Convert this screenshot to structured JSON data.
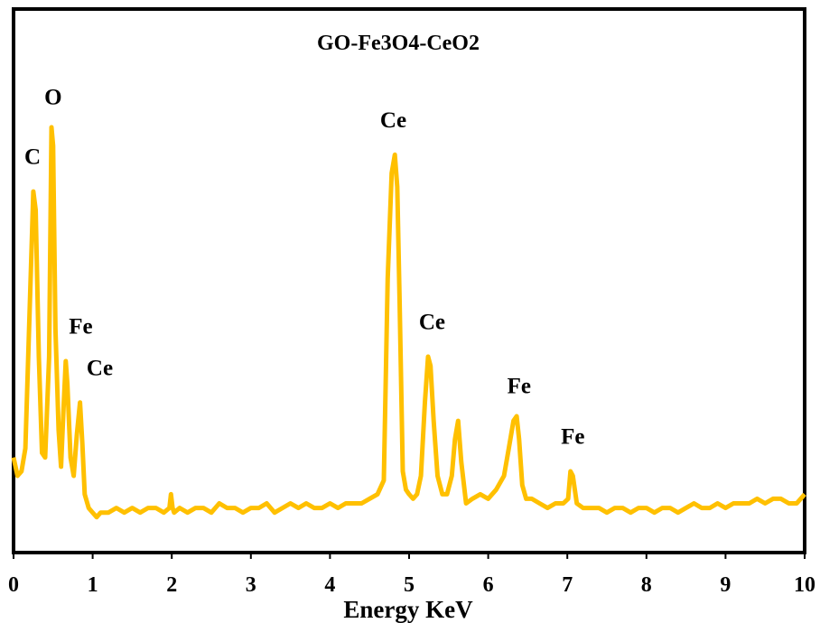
{
  "chart_data": {
    "type": "line",
    "title": "GO-Fe3O4-CeO2",
    "xlabel": "Energy KeV",
    "ylabel": "",
    "xlim": [
      0,
      10
    ],
    "ylim": [
      0,
      100
    ],
    "xticks": [
      "0",
      "1",
      "2",
      "3",
      "4",
      "5",
      "6",
      "7",
      "8",
      "9",
      "10"
    ],
    "grid": false,
    "line_color": "#FFC000",
    "series": [
      {
        "x": [
          0.0,
          0.05,
          0.1,
          0.15,
          0.2,
          0.25,
          0.28,
          0.32,
          0.36,
          0.4,
          0.45,
          0.48,
          0.5,
          0.53,
          0.57,
          0.6,
          0.63,
          0.66,
          0.68,
          0.72,
          0.76,
          0.8,
          0.84,
          0.87,
          0.9,
          0.95,
          1.0,
          1.05,
          1.1,
          1.2,
          1.3,
          1.4,
          1.5,
          1.6,
          1.7,
          1.8,
          1.9,
          1.97,
          1.99,
          2.01,
          2.03,
          2.1,
          2.2,
          2.3,
          2.4,
          2.5,
          2.6,
          2.7,
          2.8,
          2.9,
          3.0,
          3.1,
          3.2,
          3.3,
          3.4,
          3.5,
          3.6,
          3.7,
          3.8,
          3.9,
          4.0,
          4.1,
          4.2,
          4.3,
          4.4,
          4.5,
          4.6,
          4.68,
          4.73,
          4.78,
          4.82,
          4.85,
          4.88,
          4.92,
          4.96,
          5.0,
          5.05,
          5.1,
          5.15,
          5.2,
          5.24,
          5.27,
          5.31,
          5.36,
          5.42,
          5.48,
          5.54,
          5.58,
          5.62,
          5.66,
          5.72,
          5.8,
          5.9,
          6.0,
          6.1,
          6.2,
          6.26,
          6.32,
          6.36,
          6.39,
          6.43,
          6.48,
          6.55,
          6.65,
          6.75,
          6.85,
          6.95,
          7.01,
          7.04,
          7.07,
          7.12,
          7.2,
          7.3,
          7.4,
          7.5,
          7.6,
          7.7,
          7.8,
          7.9,
          8.0,
          8.1,
          8.2,
          8.3,
          8.4,
          8.5,
          8.6,
          8.7,
          8.8,
          8.9,
          9.0,
          9.1,
          9.2,
          9.3,
          9.4,
          9.5,
          9.6,
          9.7,
          9.8,
          9.9,
          10.0
        ],
        "y": [
          16,
          12,
          13,
          18,
          46,
          74,
          70,
          38,
          17,
          16,
          38,
          88,
          84,
          44,
          22,
          14,
          26,
          37,
          32,
          16,
          12,
          21,
          28,
          19,
          8,
          5,
          4,
          3,
          4,
          4,
          5,
          4,
          5,
          4,
          5,
          5,
          4,
          5,
          8,
          5,
          4,
          5,
          4,
          5,
          5,
          4,
          6,
          5,
          5,
          4,
          5,
          5,
          6,
          4,
          5,
          6,
          5,
          6,
          5,
          5,
          6,
          5,
          6,
          6,
          6,
          7,
          8,
          11,
          55,
          78,
          82,
          75,
          50,
          13,
          9,
          8,
          7,
          8,
          12,
          28,
          38,
          36,
          24,
          12,
          8,
          8,
          12,
          20,
          24,
          15,
          6,
          7,
          8,
          7,
          9,
          12,
          18,
          24,
          25,
          20,
          10,
          7,
          7,
          6,
          5,
          6,
          6,
          7,
          13,
          12,
          6,
          5,
          5,
          5,
          4,
          5,
          5,
          4,
          5,
          5,
          4,
          5,
          5,
          4,
          5,
          6,
          5,
          5,
          6,
          5,
          6,
          6,
          6,
          7,
          6,
          7,
          7,
          6,
          6,
          8
        ]
      }
    ],
    "annotations": [
      {
        "text": "C",
        "x": 0.24,
        "y": 80
      },
      {
        "text": "O",
        "x": 0.5,
        "y": 93
      },
      {
        "text": "Fe",
        "x": 0.85,
        "y": 43
      },
      {
        "text": "Ce",
        "x": 1.09,
        "y": 34
      },
      {
        "text": "Ce",
        "x": 4.8,
        "y": 88
      },
      {
        "text": "Ce",
        "x": 5.29,
        "y": 44
      },
      {
        "text": "Fe",
        "x": 6.39,
        "y": 30
      },
      {
        "text": "Fe",
        "x": 7.07,
        "y": 19
      }
    ]
  }
}
